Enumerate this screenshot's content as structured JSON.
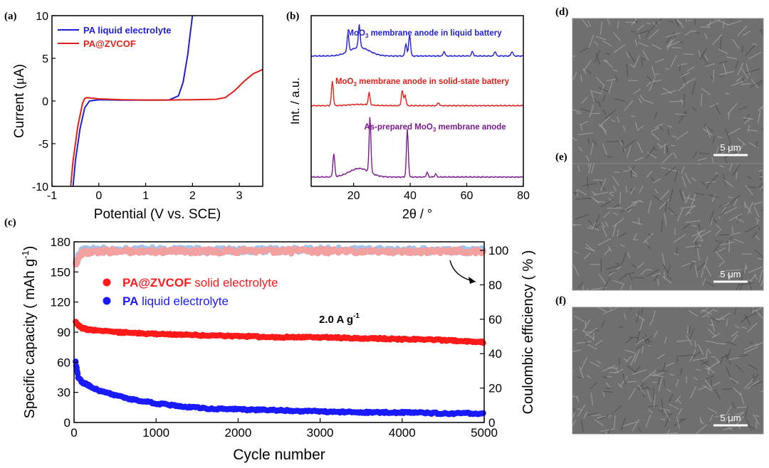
{
  "panel_labels": {
    "a": "(a)",
    "b": "(b)",
    "c": "(c)",
    "d": "(d)",
    "e": "(e)",
    "f": "(f)"
  },
  "sem": {
    "scale_label": "5 μm",
    "colors": {
      "base": "#6f6f6f",
      "dark": "#4a4a4a",
      "light": "#a8a8a8"
    }
  },
  "chart_data": [
    {
      "id": "a",
      "type": "line",
      "xlabel": "Potential (V vs. SCE)",
      "ylabel_prefix": "Current (",
      "ylabel_symbol": "μ",
      "ylabel_suffix": "A)",
      "xlim": [
        -1,
        3.5
      ],
      "ylim": [
        -10,
        10
      ],
      "xticks": [
        -1,
        0,
        1,
        2,
        3
      ],
      "yticks": [
        -10,
        -5,
        0,
        5,
        10
      ],
      "series": [
        {
          "name": "PA liquid electrolyte",
          "color": "#1f1fd6",
          "x": [
            -0.55,
            -0.5,
            -0.4,
            -0.3,
            -0.2,
            0,
            0.5,
            1,
            1.5,
            1.7,
            1.8,
            1.9,
            1.95,
            2.0
          ],
          "y": [
            -10,
            -7,
            -3.2,
            -0.8,
            0,
            0.15,
            0.1,
            0.1,
            0.12,
            0.6,
            2.2,
            5.5,
            7.8,
            10
          ]
        },
        {
          "name": "PA@ZVCOF",
          "color": "#e0201a",
          "x": [
            -0.6,
            -0.55,
            -0.45,
            -0.35,
            -0.3,
            -0.25,
            0,
            0.5,
            1,
            1.5,
            2,
            2.5,
            2.7,
            2.9,
            3.1,
            3.3,
            3.5
          ],
          "y": [
            -10,
            -7,
            -3,
            -0.3,
            0.3,
            0.4,
            0.25,
            0.15,
            0.12,
            0.12,
            0.15,
            0.2,
            0.4,
            1.2,
            2.3,
            3.2,
            3.7
          ]
        }
      ]
    },
    {
      "id": "b",
      "type": "line",
      "xlabel": "2θ / °",
      "ylabel": "Int. / a.u.",
      "xlim": [
        5,
        80
      ],
      "xticks": [
        20,
        40,
        60,
        80
      ],
      "series": [
        {
          "name": "MoO3 membrane anode in liquid battery",
          "label_pre": "MoO",
          "label_sub": "3",
          "label_post": " membrane anode in liquid battery",
          "color": "#1f1fd6",
          "baseline": 8.4,
          "peaks": [
            [
              18,
              1.2
            ],
            [
              22,
              1.5
            ],
            [
              38.5,
              0.8
            ],
            [
              39.8,
              1.4
            ],
            [
              52,
              0.3
            ],
            [
              62,
              0.3
            ],
            [
              70,
              0.3
            ],
            [
              76,
              0.3
            ]
          ]
        },
        {
          "name": "MoO3 membrane anode in solid-state battery",
          "label_pre": "MoO",
          "label_sub": "3",
          "label_post": " membrane anode in solid-state battery",
          "color": "#e0201a",
          "baseline": 5.2,
          "peaks": [
            [
              12.5,
              1.6
            ],
            [
              25.5,
              0.8
            ],
            [
              37.2,
              1.0
            ],
            [
              38.2,
              0.7
            ],
            [
              50,
              0.2
            ]
          ]
        },
        {
          "name": "As-prepared MoO3 membrane anode",
          "label_pre": "As-prepared MoO",
          "label_sub": "3",
          "label_post": " membrane anode",
          "color": "#7a1a8f",
          "baseline": 0.6,
          "peaks": [
            [
              13,
              1.5
            ],
            [
              25.8,
              3.6
            ],
            [
              39,
              3.1
            ],
            [
              46,
              0.3
            ],
            [
              49,
              0.2
            ]
          ]
        }
      ]
    },
    {
      "id": "c",
      "type": "scatter",
      "xlabel": "Cycle number",
      "ylabel_left": "Specific capacity ( mAh g",
      "ylabel_left_sup": "-1",
      "ylabel_left_close": ")",
      "ylabel_right": "Coulombic efficiency ( % )",
      "annotation": "2.0 A g",
      "annotation_sup": "-1",
      "xlim": [
        0,
        5000
      ],
      "ylim_left": [
        0,
        180
      ],
      "ylim_right": [
        0,
        105
      ],
      "xticks": [
        0,
        1000,
        2000,
        3000,
        4000,
        5000
      ],
      "yticks_left": [
        0,
        30,
        60,
        90,
        120,
        150,
        180
      ],
      "yticks_right": [
        0,
        20,
        40,
        60,
        80,
        100
      ],
      "series": [
        {
          "name": "PA@ZVCOF solid electrolyte",
          "bold": "PA@ZVCOF",
          "rest": " solid electrolyte",
          "color": "#ff1a1a",
          "axis": "left",
          "x": [
            20,
            50,
            100,
            200,
            500,
            1000,
            1500,
            2000,
            2500,
            3000,
            3500,
            4000,
            4500,
            5000
          ],
          "y": [
            100,
            97,
            94,
            92,
            90,
            88,
            87,
            86,
            85,
            85,
            84,
            83,
            82,
            80
          ]
        },
        {
          "name": "PA liquid electrolyte",
          "bold": "PA",
          "rest": " liquid electrolyte",
          "color": "#1a1aff",
          "axis": "left",
          "x": [
            20,
            50,
            100,
            200,
            300,
            500,
            700,
            1000,
            1300,
            1600,
            2000,
            2500,
            3000,
            3500,
            4000,
            4500,
            5000
          ],
          "y": [
            60,
            45,
            40,
            36,
            32,
            27,
            23,
            19,
            16,
            14,
            13,
            12,
            11,
            10,
            10,
            9,
            9
          ]
        },
        {
          "name": "PA@ZVCOF CE",
          "color": "#f2a0a0",
          "axis": "right",
          "x": [
            20,
            100,
            300,
            1000,
            2000,
            3000,
            4000,
            5000
          ],
          "y": [
            92,
            99,
            99.5,
            99.5,
            99.5,
            99.5,
            99.5,
            99.5
          ]
        },
        {
          "name": "PA liquid CE",
          "color": "#9ec3ec",
          "axis": "right",
          "x": [
            20,
            100,
            300,
            1000,
            2000,
            3000,
            4000,
            5000
          ],
          "y": [
            94,
            100,
            100.5,
            100.5,
            100,
            100.5,
            100,
            100
          ]
        }
      ]
    }
  ]
}
